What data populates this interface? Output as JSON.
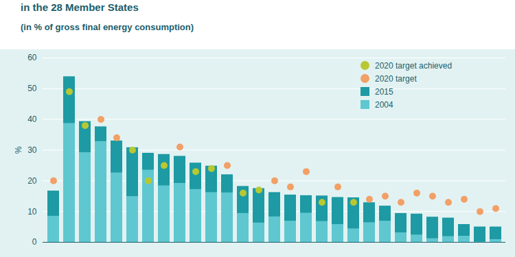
{
  "chart_data": {
    "type": "bar",
    "title": "in the 28 Member States",
    "subtitle": "(in % of gross final energy consumption)",
    "y_label": "%",
    "categories": [
      null,
      null,
      null,
      null,
      null,
      null,
      null,
      null,
      null,
      null,
      null,
      null,
      null,
      null,
      null,
      null,
      null,
      null,
      null,
      null,
      null,
      null,
      null,
      null,
      null,
      null,
      null,
      null,
      null
    ],
    "series": [
      {
        "name": "2020 target achieved",
        "type": "scatter",
        "marker": "circle",
        "color": "#b8c832",
        "values": [
          null,
          49,
          38,
          null,
          null,
          30,
          20,
          25,
          null,
          23,
          24,
          null,
          16,
          17,
          null,
          null,
          null,
          13,
          null,
          13,
          null,
          null,
          null,
          null,
          null,
          null,
          null,
          null,
          null
        ]
      },
      {
        "name": "2020 target",
        "type": "scatter",
        "marker": "circle",
        "color": "#f2a066",
        "values": [
          20,
          null,
          null,
          40,
          34,
          null,
          null,
          null,
          31,
          null,
          null,
          25,
          null,
          null,
          20,
          18,
          23,
          null,
          18,
          null,
          14,
          15,
          13,
          16,
          15,
          13,
          14,
          10,
          11
        ]
      },
      {
        "name": "2015",
        "type": "bar",
        "color": "#1d9aa3",
        "values": [
          16.7,
          53.9,
          39.3,
          37.6,
          33.0,
          30.8,
          29.0,
          28.6,
          28.0,
          25.8,
          24.8,
          22.0,
          18.2,
          17.5,
          16.2,
          15.4,
          15.2,
          15.1,
          14.6,
          14.5,
          12.9,
          11.8,
          9.4,
          9.2,
          8.2,
          7.9,
          5.8,
          5.0,
          5.0
        ]
      },
      {
        "name": "2004",
        "type": "bar",
        "color": "#5fc7d0",
        "values": [
          8.5,
          38.7,
          29.2,
          32.8,
          22.6,
          14.9,
          23.5,
          18.4,
          19.2,
          17.2,
          16.2,
          16.1,
          9.4,
          6.3,
          8.3,
          6.9,
          9.5,
          6.8,
          5.8,
          4.4,
          6.4,
          6.9,
          3.1,
          2.4,
          1.2,
          1.9,
          2.0,
          0.1,
          0.9
        ]
      }
    ],
    "ylim": [
      0,
      60
    ],
    "yticks": [
      0,
      10,
      20,
      30,
      40,
      50,
      60
    ],
    "grid": true,
    "legend": "top-right",
    "stacked": false,
    "tick_labels": "y"
  }
}
